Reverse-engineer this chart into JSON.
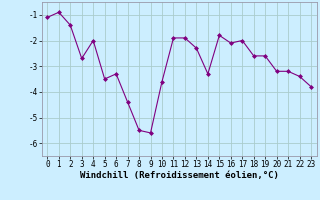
{
  "x": [
    0,
    1,
    2,
    3,
    4,
    5,
    6,
    7,
    8,
    9,
    10,
    11,
    12,
    13,
    14,
    15,
    16,
    17,
    18,
    19,
    20,
    21,
    22,
    23
  ],
  "y": [
    -1.1,
    -0.9,
    -1.4,
    -2.7,
    -2.0,
    -3.5,
    -3.3,
    -4.4,
    -5.5,
    -5.6,
    -3.6,
    -1.9,
    -1.9,
    -2.3,
    -3.3,
    -1.8,
    -2.1,
    -2.0,
    -2.6,
    -2.6,
    -3.2,
    -3.2,
    -3.4,
    -3.8
  ],
  "line_color": "#800080",
  "marker": "D",
  "marker_size": 2,
  "bg_color": "#cceeff",
  "grid_color": "#aacccc",
  "xlabel": "Windchill (Refroidissement éolien,°C)",
  "xlabel_fontsize": 6.5,
  "ylim": [
    -6.5,
    -0.5
  ],
  "xlim": [
    -0.5,
    23.5
  ],
  "yticks": [
    -6,
    -5,
    -4,
    -3,
    -2,
    -1
  ],
  "xticks": [
    0,
    1,
    2,
    3,
    4,
    5,
    6,
    7,
    8,
    9,
    10,
    11,
    12,
    13,
    14,
    15,
    16,
    17,
    18,
    19,
    20,
    21,
    22,
    23
  ],
  "tick_fontsize": 5.5,
  "spine_color": "#9999aa"
}
